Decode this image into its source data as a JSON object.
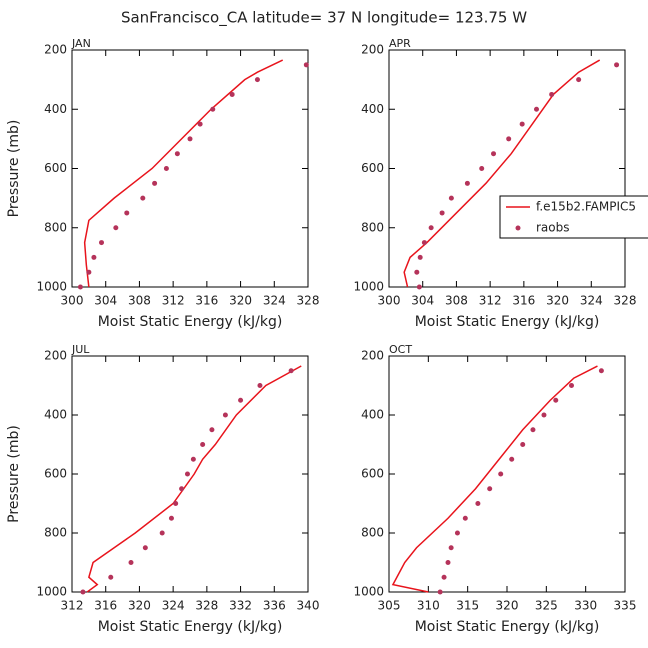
{
  "title": "SanFrancisco_CA  latitude= 37 N longitude= 123.75 W",
  "chart_data": [
    {
      "type": "line",
      "panel_label": "JAN",
      "xlabel": "Moist Static Energy (kJ/kg)",
      "ylabel": "Pressure (mb)",
      "xlim": [
        300,
        328
      ],
      "xticks": [
        300,
        304,
        308,
        312,
        316,
        320,
        324,
        328
      ],
      "ylim": [
        1000,
        200
      ],
      "yticks": [
        200,
        400,
        600,
        800,
        1000
      ],
      "series": [
        {
          "style": "line",
          "color": "#e8141c",
          "x": [
            325,
            322,
            320.5,
            316.5,
            313,
            309.5,
            305,
            302,
            301.5,
            301.7,
            302
          ],
          "y": [
            234,
            275,
            300,
            400,
            500,
            600,
            700,
            775,
            850,
            925,
            1000
          ]
        },
        {
          "style": "markers",
          "color": "#b5335a",
          "x": [
            327.8,
            322,
            319,
            316.7,
            315.2,
            314,
            312.5,
            311.2,
            309.8,
            308.4,
            306.5,
            305.2,
            303.5,
            302.6,
            302,
            301
          ],
          "y": [
            250,
            300,
            350,
            400,
            450,
            500,
            550,
            600,
            650,
            700,
            750,
            800,
            850,
            900,
            950,
            1000
          ]
        }
      ]
    },
    {
      "type": "line",
      "panel_label": "APR",
      "xlabel": "Moist Static Energy (kJ/kg)",
      "legend": "right",
      "xlim": [
        300,
        328
      ],
      "xticks": [
        300,
        304,
        308,
        312,
        316,
        320,
        324,
        328
      ],
      "ylim": [
        1000,
        200
      ],
      "yticks": [
        200,
        400,
        600,
        800,
        1000
      ],
      "series": [
        {
          "name": "f.e15b2.FAMPIC5",
          "style": "line",
          "color": "#e8141c",
          "x": [
            325,
            322.5,
            319.5,
            317,
            314.5,
            311.5,
            308,
            304.5,
            302.5,
            301.8,
            302.2
          ],
          "y": [
            234,
            275,
            350,
            450,
            550,
            650,
            750,
            850,
            900,
            950,
            1000
          ]
        },
        {
          "name": "raobs",
          "style": "markers",
          "color": "#b5335a",
          "x": [
            327,
            322.5,
            319.3,
            317.5,
            315.8,
            314.2,
            312.4,
            311,
            309.3,
            307.4,
            306.3,
            305,
            304.2,
            303.7,
            303.3,
            303.6
          ],
          "y": [
            250,
            300,
            350,
            400,
            450,
            500,
            550,
            600,
            650,
            700,
            750,
            800,
            850,
            900,
            950,
            1000
          ]
        }
      ]
    },
    {
      "type": "line",
      "panel_label": "JUL",
      "xlabel": "Moist Static Energy (kJ/kg)",
      "ylabel": "Pressure (mb)",
      "xlim": [
        312,
        340
      ],
      "xticks": [
        312,
        316,
        320,
        324,
        328,
        332,
        336,
        340
      ],
      "ylim": [
        1000,
        200
      ],
      "yticks": [
        200,
        400,
        600,
        800,
        1000
      ],
      "series": [
        {
          "style": "line",
          "color": "#e8141c",
          "x": [
            339.2,
            335,
            331.5,
            329,
            327.5,
            326.5,
            324,
            319.5,
            317,
            314.5,
            314,
            315,
            313.8
          ],
          "y": [
            234,
            300,
            400,
            500,
            550,
            600,
            700,
            800,
            850,
            900,
            950,
            975,
            1000
          ]
        },
        {
          "style": "markers",
          "color": "#b5335a",
          "x": [
            338,
            334.3,
            332,
            330.2,
            328.6,
            327.5,
            326.4,
            325.7,
            325,
            324.3,
            323.8,
            322.7,
            320.7,
            319,
            316.6,
            313.3
          ],
          "y": [
            250,
            300,
            350,
            400,
            450,
            500,
            550,
            600,
            650,
            700,
            750,
            800,
            850,
            900,
            950,
            1000
          ]
        }
      ]
    },
    {
      "type": "line",
      "panel_label": "OCT",
      "xlabel": "Moist Static Energy (kJ/kg)",
      "xlim": [
        305,
        335
      ],
      "xticks": [
        305,
        310,
        315,
        320,
        325,
        330,
        335
      ],
      "ylim": [
        1000,
        200
      ],
      "yticks": [
        200,
        400,
        600,
        800,
        1000
      ],
      "series": [
        {
          "style": "line",
          "color": "#e8141c",
          "x": [
            331.5,
            328.5,
            325.5,
            322,
            319,
            316,
            312.5,
            308.5,
            307,
            306,
            305.5,
            310
          ],
          "y": [
            234,
            275,
            350,
            450,
            550,
            650,
            750,
            850,
            900,
            950,
            975,
            1000
          ]
        },
        {
          "style": "markers",
          "color": "#b5335a",
          "x": [
            332,
            328.2,
            326.2,
            324.7,
            323.3,
            322,
            320.6,
            319.2,
            317.8,
            316.3,
            314.7,
            313.7,
            312.9,
            312.5,
            312,
            311.5
          ],
          "y": [
            250,
            300,
            350,
            400,
            450,
            500,
            550,
            600,
            650,
            700,
            750,
            800,
            850,
            900,
            950,
            1000
          ]
        }
      ]
    }
  ]
}
